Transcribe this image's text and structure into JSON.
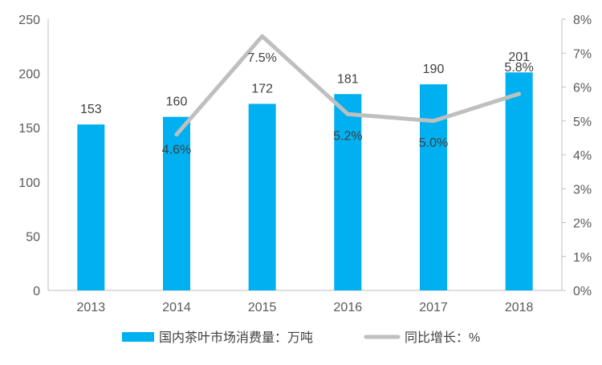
{
  "chart_data": {
    "type": "bar",
    "categories": [
      "2013",
      "2014",
      "2015",
      "2016",
      "2017",
      "2018"
    ],
    "series": [
      {
        "name": "国内茶叶市场消费量：万吨",
        "type": "bar",
        "axis": "left",
        "values": [
          153,
          160,
          172,
          181,
          190,
          201
        ],
        "labels": [
          "153",
          "160",
          "172",
          "181",
          "190",
          "201"
        ],
        "color": "#00B0F0"
      },
      {
        "name": "同比增长：%",
        "type": "line",
        "axis": "right",
        "values": [
          null,
          4.6,
          7.5,
          5.2,
          5.0,
          5.8
        ],
        "labels": [
          "",
          "4.6%",
          "7.5%",
          "5.2%",
          "5.0%",
          "5.8%"
        ],
        "color": "#BFBFBF"
      }
    ],
    "y_left": {
      "min": 0,
      "max": 250,
      "ticks": [
        "0",
        "50",
        "100",
        "150",
        "200",
        "250"
      ]
    },
    "y_right": {
      "min": 0,
      "max": 8,
      "ticks": [
        "0%",
        "1%",
        "2%",
        "3%",
        "4%",
        "5%",
        "6%",
        "7%",
        "8%"
      ]
    },
    "legend": {
      "position": "bottom"
    },
    "grid": false
  }
}
